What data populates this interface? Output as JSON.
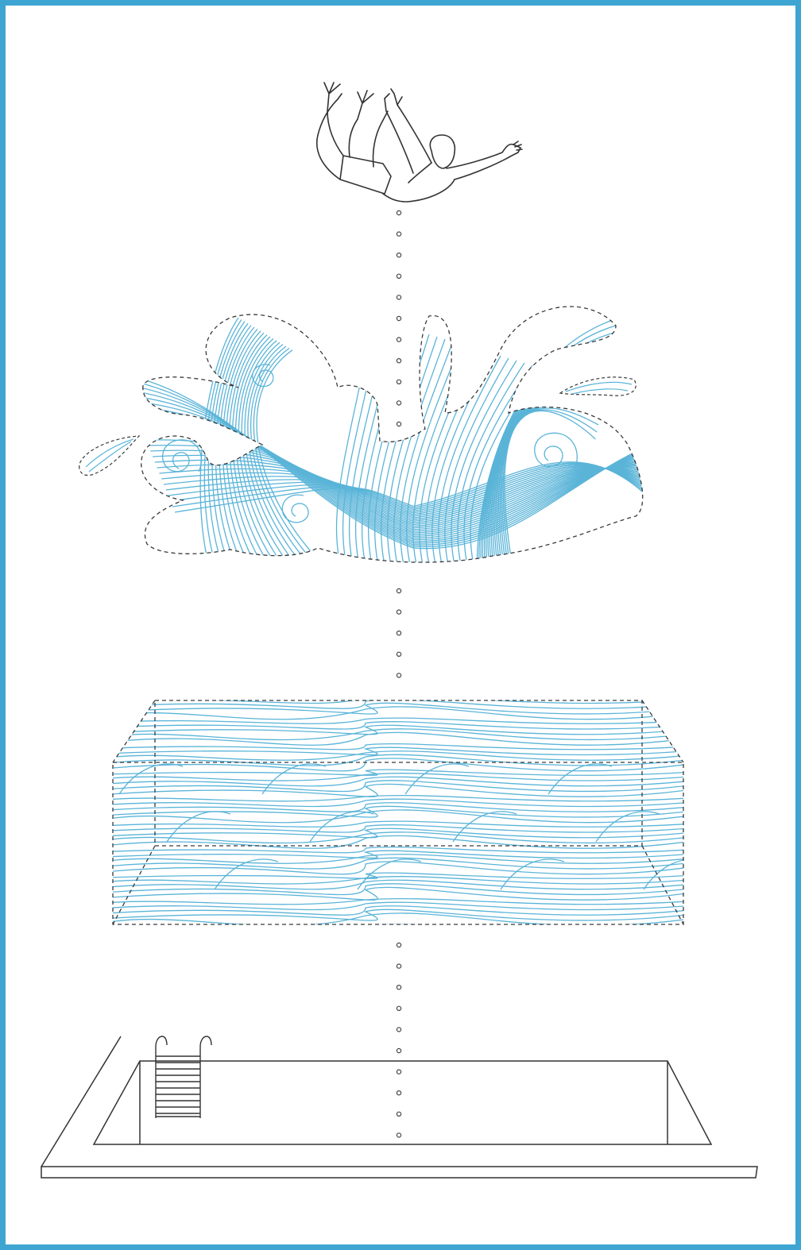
{
  "colors": {
    "frame": "#3ea5d2",
    "water_line": "#5ab4d8",
    "outline": "#333333",
    "dash_outline": "#3a3a3a",
    "dot": "#444444",
    "background": "#ffffff"
  },
  "icons": {
    "diver": "diving-person-icon",
    "splash": "water-splash-icon",
    "water_block": "water-volume-box-icon",
    "pool": "swimming-pool-icon",
    "ladder": "pool-ladder-icon",
    "connector": "dotted-connector"
  }
}
